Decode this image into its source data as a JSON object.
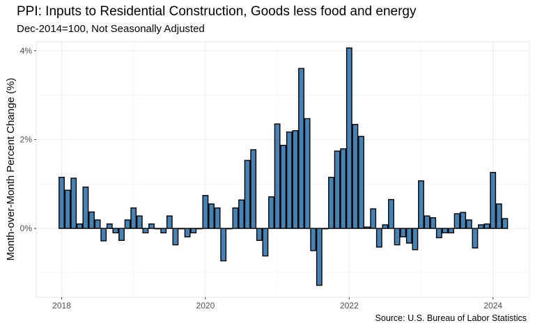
{
  "chart_data": {
    "type": "bar",
    "title": "PPI: Inputs to Residential Construction, Goods less food and energy",
    "subtitle": "Dec-2014=100, Not Seasonally Adjusted",
    "ylabel": "Month-over-Month Percent Change (%)",
    "xlabel": "",
    "caption": "Source: U.S. Bureau of Labor Statistics",
    "ylim": [
      -1.55,
      4.2
    ],
    "y_ticks": [
      {
        "value": 0,
        "label": "0%"
      },
      {
        "value": 2,
        "label": "2%"
      },
      {
        "value": 4,
        "label": "4%"
      }
    ],
    "x_ticks": [
      {
        "value": "2018-01",
        "label": "2018"
      },
      {
        "value": "2020-01",
        "label": "2020"
      },
      {
        "value": "2022-01",
        "label": "2022"
      },
      {
        "value": "2024-01",
        "label": "2024"
      }
    ],
    "grid": true,
    "bar_fill": "#4682b4",
    "bar_outline": "#000000",
    "x": [
      "2018-01",
      "2018-02",
      "2018-03",
      "2018-04",
      "2018-05",
      "2018-06",
      "2018-07",
      "2018-08",
      "2018-09",
      "2018-10",
      "2018-11",
      "2018-12",
      "2019-01",
      "2019-02",
      "2019-03",
      "2019-04",
      "2019-05",
      "2019-06",
      "2019-07",
      "2019-08",
      "2019-09",
      "2019-10",
      "2019-11",
      "2019-12",
      "2020-01",
      "2020-02",
      "2020-03",
      "2020-04",
      "2020-05",
      "2020-06",
      "2020-07",
      "2020-08",
      "2020-09",
      "2020-10",
      "2020-11",
      "2020-12",
      "2021-01",
      "2021-02",
      "2021-03",
      "2021-04",
      "2021-05",
      "2021-06",
      "2021-07",
      "2021-08",
      "2021-09",
      "2021-10",
      "2021-11",
      "2021-12",
      "2022-01",
      "2022-02",
      "2022-03",
      "2022-04",
      "2022-05",
      "2022-06",
      "2022-07",
      "2022-08",
      "2022-09",
      "2022-10",
      "2022-11",
      "2022-12",
      "2023-01",
      "2023-02",
      "2023-03",
      "2023-04",
      "2023-05",
      "2023-06",
      "2023-07",
      "2023-08",
      "2023-09",
      "2023-10",
      "2023-11",
      "2023-12",
      "2024-01",
      "2024-02",
      "2024-03"
    ],
    "values": [
      1.15,
      0.86,
      1.13,
      0.1,
      0.93,
      0.37,
      0.19,
      -0.28,
      0.1,
      -0.1,
      -0.27,
      0.19,
      0.46,
      0.28,
      -0.1,
      0.1,
      0.0,
      -0.1,
      0.28,
      -0.37,
      0.0,
      -0.19,
      -0.1,
      0.0,
      0.74,
      0.55,
      0.46,
      -0.73,
      0.0,
      0.46,
      0.64,
      1.53,
      1.77,
      -0.27,
      -0.62,
      0.71,
      2.35,
      1.87,
      2.17,
      2.2,
      3.6,
      2.47,
      -0.5,
      -1.28,
      0.0,
      1.15,
      1.74,
      1.79,
      4.06,
      2.34,
      2.07,
      0.03,
      0.44,
      -0.42,
      0.08,
      0.65,
      -0.37,
      -0.19,
      -0.33,
      -0.48,
      1.07,
      0.28,
      0.24,
      -0.21,
      -0.1,
      -0.1,
      0.33,
      0.36,
      0.19,
      -0.44,
      0.08,
      0.1,
      1.26,
      0.55,
      0.22
    ]
  }
}
